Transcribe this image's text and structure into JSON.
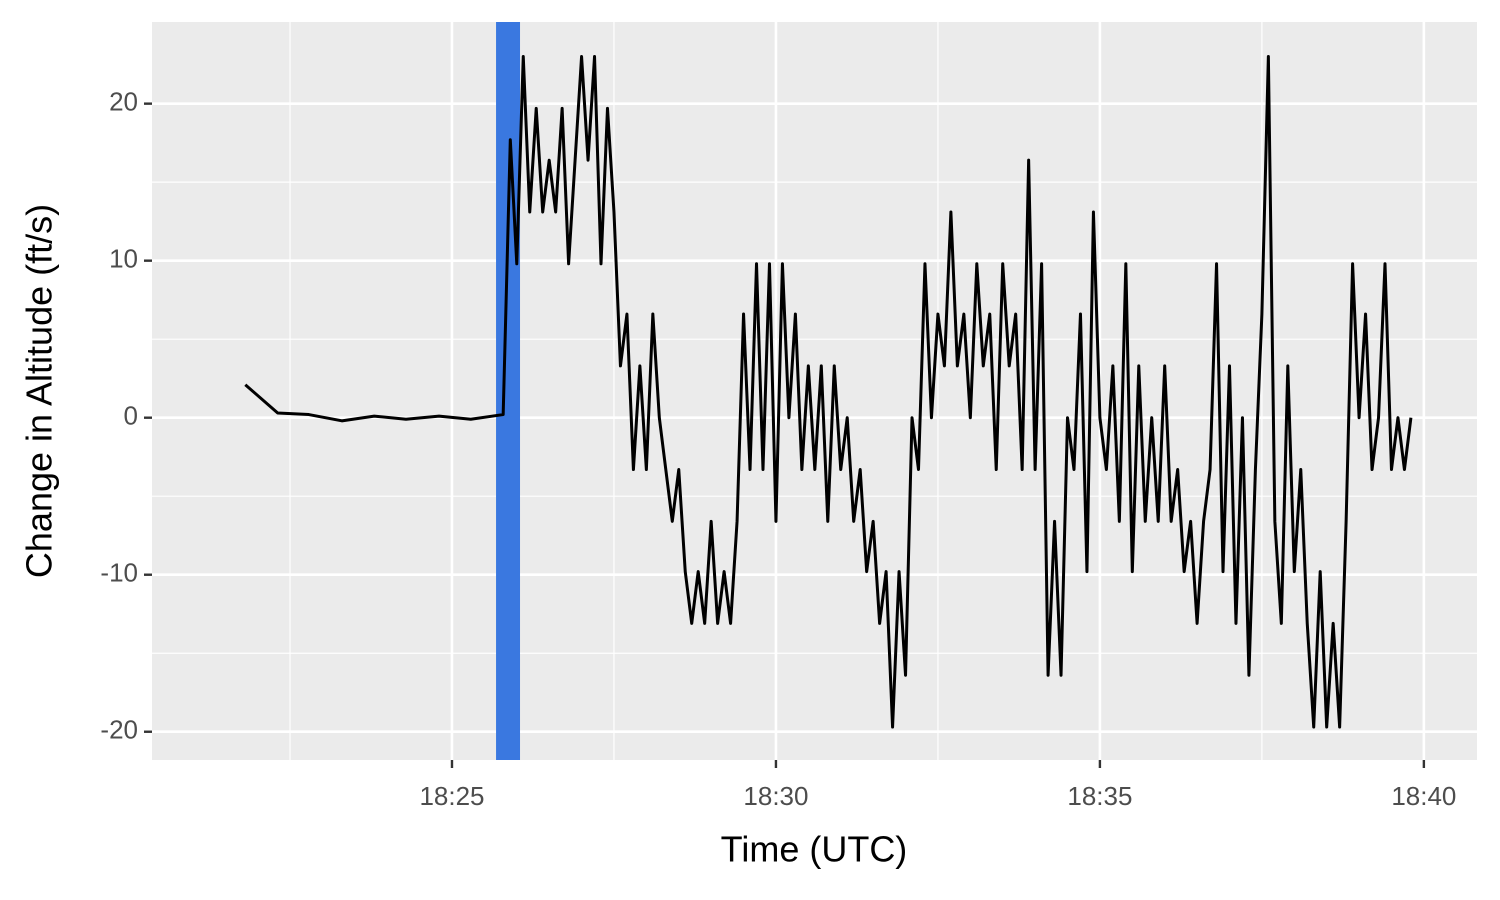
{
  "chart_data": {
    "type": "line",
    "x_label": "Time (UTC)",
    "y_label": "Change in Altitude (ft/s)",
    "x": [
      21.81,
      22.31,
      22.79,
      23.3,
      23.8,
      24.29,
      24.8,
      25.29,
      25.79,
      25.9,
      26.0,
      26.1,
      26.2,
      26.3,
      26.4,
      26.5,
      26.6,
      26.7,
      26.8,
      26.9,
      27.0,
      27.1,
      27.2,
      27.3,
      27.4,
      27.5,
      27.6,
      27.7,
      27.8,
      27.9,
      28.0,
      28.1,
      28.2,
      28.3,
      28.4,
      28.5,
      28.6,
      28.7,
      28.8,
      28.9,
      29.0,
      29.1,
      29.2,
      29.3,
      29.4,
      29.5,
      29.6,
      29.7,
      29.8,
      29.9,
      30.0,
      30.1,
      30.2,
      30.3,
      30.4,
      30.5,
      30.6,
      30.7,
      30.8,
      30.9,
      31.0,
      31.1,
      31.2,
      31.3,
      31.4,
      31.5,
      31.6,
      31.7,
      31.8,
      31.9,
      32.0,
      32.1,
      32.2,
      32.3,
      32.4,
      32.5,
      32.6,
      32.7,
      32.8,
      32.9,
      33.0,
      33.1,
      33.2,
      33.3,
      33.4,
      33.5,
      33.6,
      33.7,
      33.8,
      33.9,
      34.0,
      34.1,
      34.2,
      34.3,
      34.4,
      34.5,
      34.6,
      34.7,
      34.8,
      34.9,
      35.0,
      35.1,
      35.2,
      35.3,
      35.4,
      35.5,
      35.6,
      35.7,
      35.8,
      35.9,
      36.0,
      36.1,
      36.2,
      36.3,
      36.4,
      36.5,
      36.6,
      36.7,
      36.8,
      36.9,
      37.0,
      37.1,
      37.2,
      37.3,
      37.4,
      37.5,
      37.6,
      37.7,
      37.8,
      37.9,
      38.0,
      38.1,
      38.2,
      38.3,
      38.4,
      38.5,
      38.6,
      38.7,
      38.8,
      38.9,
      39.0,
      39.1,
      39.2,
      39.3,
      39.4,
      39.5,
      39.6,
      39.7,
      39.8
    ],
    "values": [
      2.1,
      0.3,
      0.2,
      -0.2,
      0.1,
      -0.1,
      0.1,
      -0.1,
      0.2,
      17.7,
      9.8,
      23.0,
      13.1,
      19.7,
      13.1,
      16.4,
      13.1,
      19.7,
      9.8,
      16.4,
      23.0,
      16.4,
      23.0,
      9.8,
      19.7,
      13.1,
      3.3,
      6.6,
      -3.3,
      3.3,
      -3.3,
      6.6,
      0,
      -3.3,
      -6.6,
      -3.3,
      -9.8,
      -13.1,
      -9.8,
      -13.1,
      -6.6,
      -13.1,
      -9.8,
      -13.1,
      -6.6,
      6.6,
      -3.3,
      9.8,
      -3.3,
      9.8,
      -6.6,
      9.8,
      0,
      6.6,
      -3.3,
      3.3,
      -3.3,
      3.3,
      -6.6,
      3.3,
      -3.3,
      0,
      -6.6,
      -3.3,
      -9.8,
      -6.6,
      -13.1,
      -9.8,
      -19.7,
      -9.8,
      -16.4,
      0,
      -3.3,
      9.8,
      0,
      6.6,
      3.3,
      13.1,
      3.3,
      6.6,
      0,
      9.8,
      3.3,
      6.6,
      -3.3,
      9.8,
      3.3,
      6.6,
      -3.3,
      16.4,
      -3.3,
      9.8,
      -16.4,
      -6.6,
      -16.4,
      0,
      -3.3,
      6.6,
      -9.8,
      13.1,
      0,
      -3.3,
      3.3,
      -6.6,
      9.8,
      -9.8,
      3.3,
      -6.6,
      0,
      -6.6,
      3.3,
      -6.6,
      -3.3,
      -9.8,
      -6.6,
      -13.1,
      -6.6,
      -3.3,
      9.8,
      -9.8,
      3.3,
      -13.1,
      0,
      -16.4,
      -3.3,
      6.6,
      23.0,
      -6.6,
      -13.1,
      3.3,
      -9.8,
      -3.3,
      -13.1,
      -19.7,
      -9.8,
      -19.7,
      -13.1,
      -19.7,
      -6.6,
      9.8,
      0,
      6.6,
      -3.3,
      0,
      9.8,
      -3.3,
      0,
      -3.3,
      0
    ],
    "color": "#000000",
    "highlight": {
      "xmin": 25.68,
      "xmax": 26.05,
      "color": "#3a78e0"
    },
    "xlim": [
      20.37,
      40.82
    ],
    "xticks": [
      {
        "value": 25,
        "label": "18:25"
      },
      {
        "value": 30,
        "label": "18:30"
      },
      {
        "value": 35,
        "label": "18:35"
      },
      {
        "value": 40,
        "label": "18:40"
      }
    ],
    "x_minor_grid": [
      22.5,
      27.5,
      32.5,
      37.5
    ],
    "ylim": [
      -21.8,
      25.2
    ],
    "yticks": [
      -20,
      -10,
      0,
      10,
      20
    ],
    "y_minor_grid": [
      -15,
      -5,
      5,
      15
    ],
    "grid": true
  }
}
